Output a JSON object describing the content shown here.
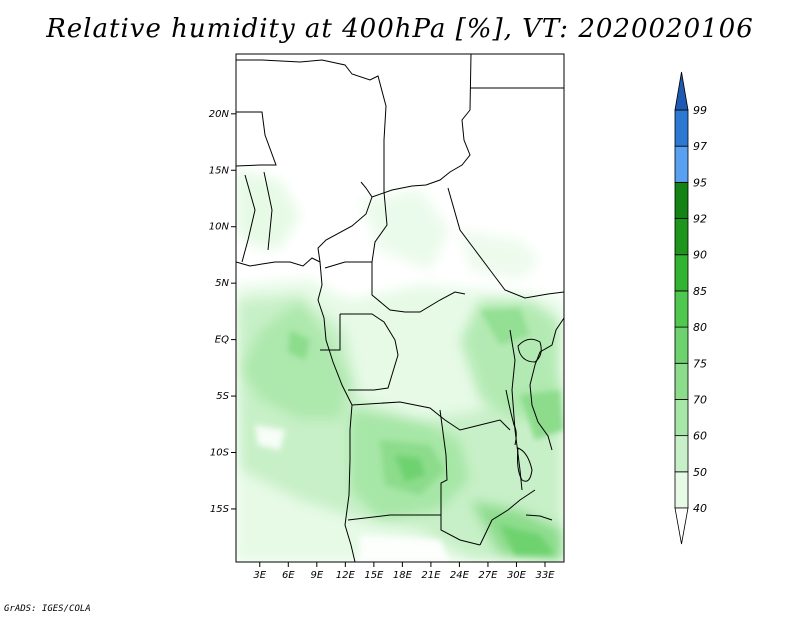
{
  "title": "Relative humidity at 400hPa [%], VT: 2020020106",
  "credit": "GrADS: IGES/COLA",
  "map": {
    "lat_ticks": [
      {
        "lat": 20,
        "label": "20N"
      },
      {
        "lat": 15,
        "label": "15N"
      },
      {
        "lat": 10,
        "label": "10N"
      },
      {
        "lat": 5,
        "label": "5N"
      },
      {
        "lat": 0,
        "label": "EQ"
      },
      {
        "lat": -5,
        "label": "5S"
      },
      {
        "lat": -10,
        "label": "10S"
      },
      {
        "lat": -15,
        "label": "15S"
      }
    ],
    "lon_ticks": [
      {
        "lon": 3,
        "label": "3E"
      },
      {
        "lon": 6,
        "label": "6E"
      },
      {
        "lon": 9,
        "label": "9E"
      },
      {
        "lon": 12,
        "label": "12E"
      },
      {
        "lon": 15,
        "label": "15E"
      },
      {
        "lon": 18,
        "label": "18E"
      },
      {
        "lon": 21,
        "label": "21E"
      },
      {
        "lon": 24,
        "label": "24E"
      },
      {
        "lon": 27,
        "label": "27E"
      },
      {
        "lon": 30,
        "label": "30E"
      },
      {
        "lon": 33,
        "label": "33E"
      }
    ]
  },
  "colorbar": {
    "levels": [
      "40",
      "50",
      "60",
      "70",
      "75",
      "80",
      "85",
      "90",
      "92",
      "95",
      "97",
      "99"
    ],
    "colors": [
      "#ffffff",
      "#e6fae6",
      "#c8f0c8",
      "#a6e6a6",
      "#8cdc8c",
      "#6ed26e",
      "#50c850",
      "#32b432",
      "#1e961e",
      "#148214",
      "#5aa0f0",
      "#2d78d2",
      "#1e5ab4"
    ]
  }
}
